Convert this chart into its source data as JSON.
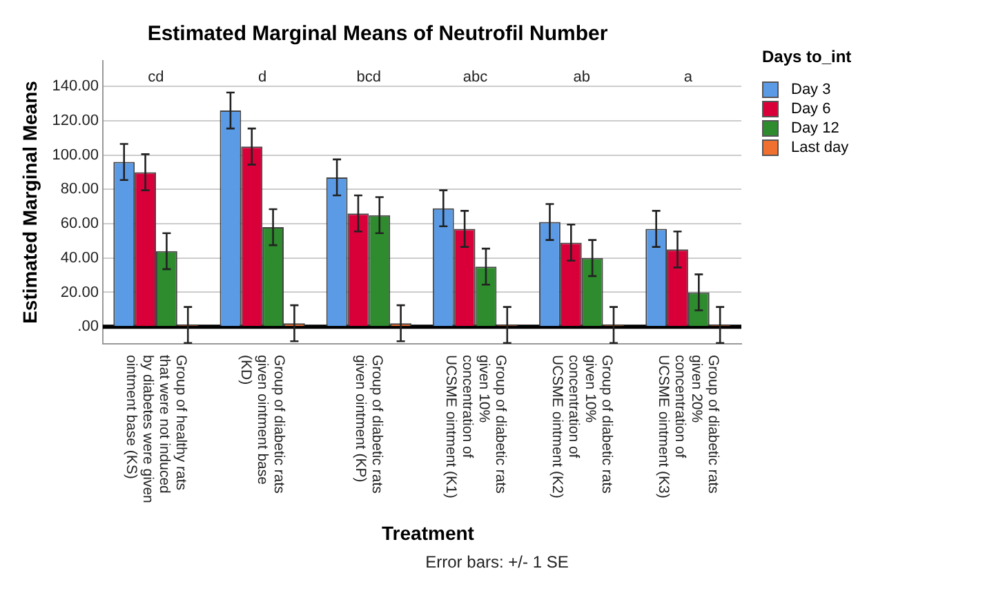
{
  "chart_data": {
    "type": "bar",
    "title": "Estimated Marginal Means of Neutrofil Number",
    "xlabel": "Treatment",
    "ylabel": "Estimated Marginal Means",
    "legend_title": "Days to_int",
    "categories": [
      "Group of healthy rats that were not induced by diabetes were given ointment base (KS)",
      "Group of diabetic rats given ointment base (KD)",
      "Group of diabetic rats given ointment (KP)",
      "Group of diabetic rats given 10% concentration of UCSME ointment (K1)",
      "Group of diabetic rats given 10% concentration of UCSME ointment (K2)",
      "Group of diabetic rats given 20% concentration of UCSME ointment (K3)"
    ],
    "series": [
      {
        "name": "Day 3",
        "color": "#5b9be6",
        "values": [
          96,
          126,
          87,
          69,
          61,
          57
        ],
        "errors": [
          10.5,
          10.5,
          10.5,
          10.5,
          10.5,
          10.5
        ]
      },
      {
        "name": "Day 6",
        "color": "#d9003a",
        "values": [
          90,
          105,
          66,
          57,
          49,
          45
        ],
        "errors": [
          10.5,
          10.5,
          10.5,
          10.5,
          10.5,
          10.5
        ]
      },
      {
        "name": "Day 12",
        "color": "#2e8b2e",
        "values": [
          44,
          58,
          65,
          35,
          40,
          20
        ],
        "errors": [
          10.5,
          10.5,
          10.5,
          10.5,
          10.5,
          10.5
        ]
      },
      {
        "name": "Last day",
        "color": "#f07030",
        "values": [
          1,
          2,
          2,
          1,
          1,
          1
        ],
        "errors": [
          10.5,
          10.5,
          10.5,
          10.5,
          10.5,
          10.5
        ]
      }
    ],
    "ylim": [
      -10,
      155
    ],
    "yticks": [
      {
        "value": 0,
        "label": ".00"
      },
      {
        "value": 20,
        "label": "20.00"
      },
      {
        "value": 40,
        "label": "40.00"
      },
      {
        "value": 60,
        "label": "60.00"
      },
      {
        "value": 80,
        "label": "80.00"
      },
      {
        "value": 100,
        "label": "100.00"
      },
      {
        "value": 120,
        "label": "120.00"
      },
      {
        "value": 140,
        "label": "140.00"
      }
    ],
    "grid": "y",
    "legend": "top right",
    "ref_lines": [
      {
        "axis": "y",
        "value": 0,
        "label": null,
        "color": "#000000"
      }
    ],
    "annotations": [
      "cd",
      "d",
      "bcd",
      "abc",
      "ab",
      "a",
      "Error bars: +/- 1 SE"
    ]
  }
}
